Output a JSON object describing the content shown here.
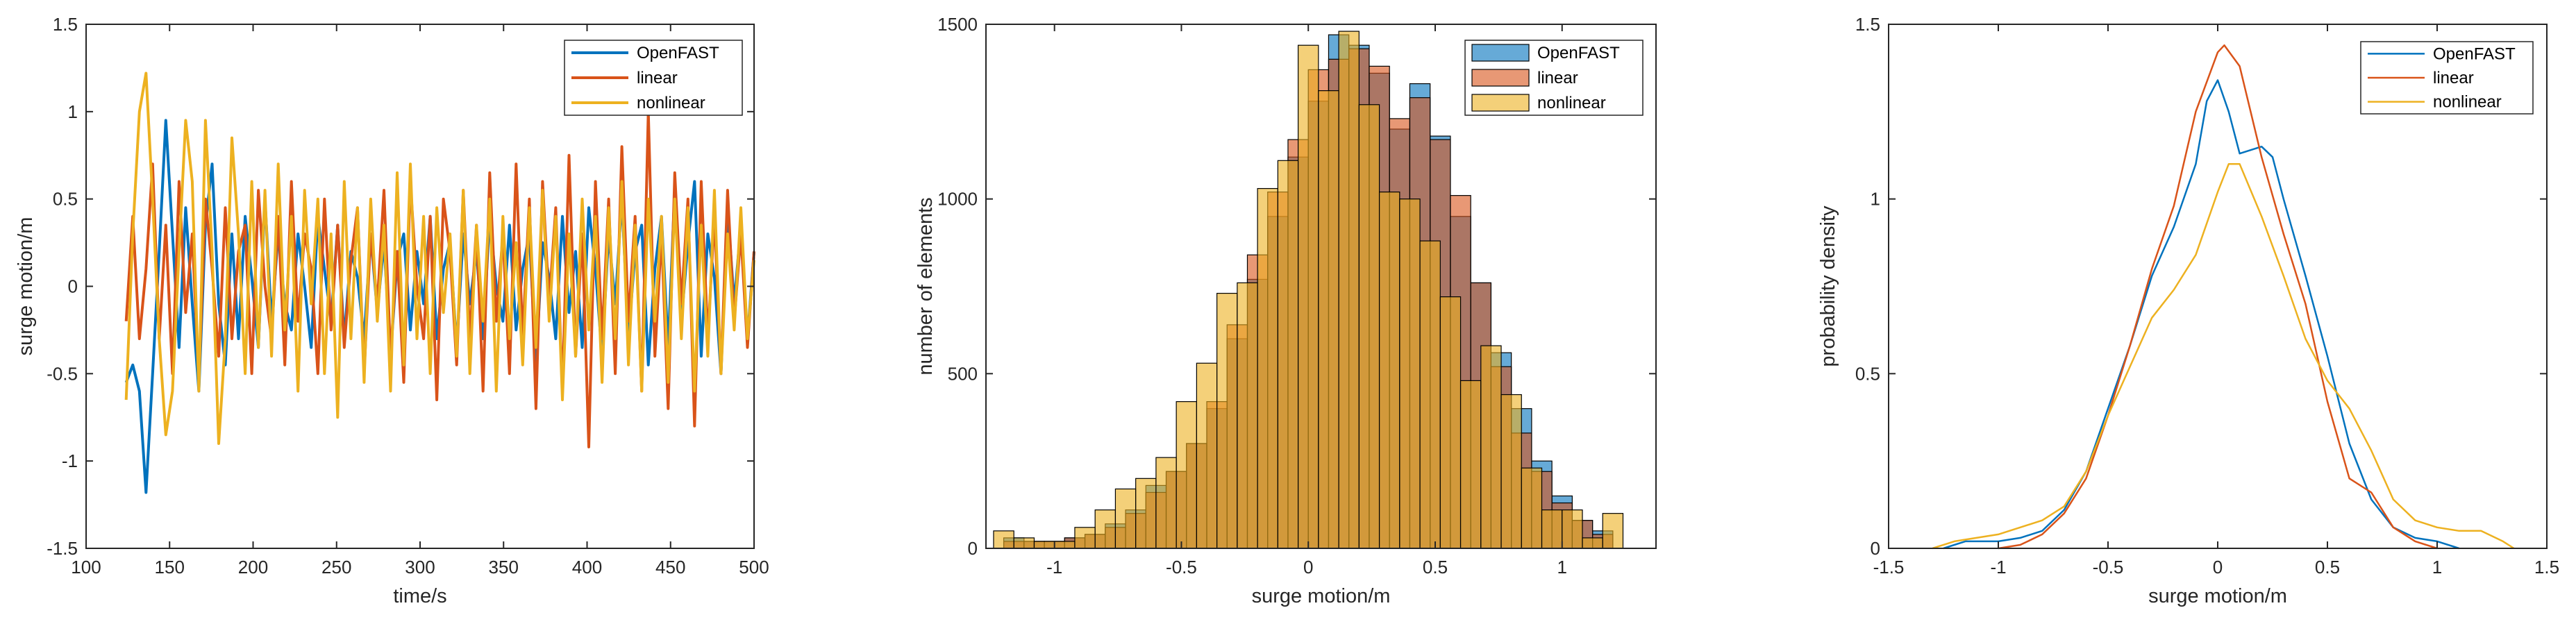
{
  "colors": {
    "openfast": "#0072BD",
    "linear": "#D95319",
    "nonlinear": "#EDB120"
  },
  "chart_data": [
    {
      "type": "line",
      "xlabel": "time/s",
      "ylabel": "surge motion/m",
      "xlim": [
        100,
        500
      ],
      "ylim": [
        -1.5,
        1.5
      ],
      "xticks": [
        "100",
        "150",
        "200",
        "250",
        "300",
        "350",
        "400",
        "450",
        "500"
      ],
      "yticks": [
        "-1.5",
        "-1",
        "-0.5",
        "0",
        "0.5",
        "1",
        "1.5"
      ],
      "legend": {
        "position": "top-right",
        "entries": [
          "OpenFAST",
          "linear",
          "nonlinear"
        ]
      },
      "series": [
        {
          "name": "OpenFAST",
          "color": "#0072BD",
          "t0": 124,
          "t1": 500,
          "values": [
            -0.55,
            -0.45,
            -0.6,
            -1.18,
            -0.5,
            0.2,
            0.95,
            0.3,
            -0.35,
            0.45,
            -0.1,
            -0.6,
            0.35,
            0.7,
            -0.1,
            -0.45,
            0.3,
            -0.3,
            0.4,
            0.05,
            -0.35,
            0.5,
            -0.2,
            0.3,
            -0.1,
            -0.25,
            0.3,
            0.0,
            -0.35,
            0.4,
            0.1,
            -0.2,
            0.35,
            -0.3,
            0.2,
            0.05,
            -0.3,
            0.3,
            -0.15,
            0.25,
            -0.4,
            0.15,
            0.3,
            -0.25,
            0.2,
            -0.1,
            0.4,
            -0.3,
            0.1,
            0.25,
            -0.35,
            0.3,
            -0.1,
            0.2,
            -0.3,
            0.4,
            0.0,
            -0.2,
            0.35,
            -0.25,
            0.1,
            0.3,
            -0.45,
            0.25,
            0.05,
            -0.3,
            0.4,
            -0.15,
            0.2,
            -0.35,
            0.45,
            0.1,
            -0.4,
            0.3,
            -0.1,
            0.5,
            -0.3,
            0.2,
            0.35,
            -0.45,
            0.1,
            0.4,
            -0.35,
            0.55,
            -0.2,
            0.25,
            0.6,
            -0.4,
            0.3,
            0.05,
            -0.5,
            0.45,
            -0.1,
            0.35,
            -0.3,
            0.2
          ]
        },
        {
          "name": "linear",
          "color": "#D95319",
          "t0": 124,
          "t1": 500,
          "values": [
            -0.2,
            0.4,
            -0.3,
            0.1,
            0.7,
            -0.3,
            0.35,
            -0.5,
            0.6,
            -0.15,
            0.3,
            -0.55,
            0.5,
            0.1,
            -0.4,
            0.45,
            -0.3,
            0.2,
            0.35,
            -0.5,
            0.55,
            0.0,
            -0.3,
            0.4,
            -0.45,
            0.6,
            -0.2,
            0.3,
            0.1,
            -0.5,
            0.5,
            -0.25,
            0.35,
            -0.35,
            0.15,
            0.45,
            -0.5,
            0.3,
            -0.1,
            0.55,
            -0.4,
            0.2,
            -0.55,
            0.6,
            0.0,
            -0.3,
            0.4,
            -0.65,
            0.5,
            0.2,
            -0.45,
            0.55,
            -0.3,
            0.35,
            -0.6,
            0.65,
            -0.2,
            0.3,
            -0.5,
            0.7,
            -0.3,
            0.5,
            -0.7,
            0.6,
            -0.1,
            0.45,
            -0.6,
            0.75,
            -0.4,
            0.3,
            -0.92,
            0.6,
            -0.3,
            0.5,
            -0.5,
            0.8,
            -0.2,
            0.4,
            -0.6,
            1.0,
            -0.4,
            0.3,
            -0.7,
            0.65,
            -0.1,
            0.5,
            -0.8,
            0.6,
            -0.3,
            0.4,
            -0.5,
            0.55,
            -0.2,
            0.3,
            -0.35,
            0.2
          ]
        },
        {
          "name": "nonlinear",
          "color": "#EDB120",
          "t0": 124,
          "t1": 500,
          "values": [
            -0.65,
            0.3,
            1.0,
            1.22,
            0.5,
            -0.3,
            -0.85,
            -0.6,
            0.2,
            0.95,
            0.6,
            -0.6,
            0.95,
            0.2,
            -0.9,
            -0.3,
            0.85,
            0.3,
            -0.5,
            0.6,
            -0.35,
            0.55,
            -0.4,
            0.7,
            -0.25,
            0.4,
            -0.6,
            0.55,
            -0.1,
            0.5,
            -0.5,
            0.3,
            -0.75,
            0.6,
            -0.3,
            0.45,
            -0.55,
            0.5,
            -0.2,
            0.35,
            -0.6,
            0.65,
            -0.45,
            0.7,
            -0.3,
            0.4,
            -0.5,
            0.45,
            -0.15,
            0.3,
            -0.4,
            0.55,
            -0.5,
            0.35,
            -0.2,
            0.5,
            -0.6,
            0.4,
            -0.3,
            0.25,
            -0.45,
            0.45,
            -0.35,
            0.55,
            -0.2,
            0.4,
            -0.65,
            0.3,
            -0.4,
            0.5,
            -0.25,
            0.4,
            -0.55,
            0.45,
            -0.3,
            0.6,
            -0.45,
            0.35,
            -0.6,
            0.5,
            -0.2,
            0.4,
            -0.55,
            0.5,
            -0.3,
            0.45,
            -0.6,
            0.35,
            -0.4,
            0.55,
            -0.5,
            0.3,
            -0.25,
            0.45,
            -0.3,
            0.15
          ]
        }
      ]
    },
    {
      "type": "bar",
      "subtype": "histogram",
      "xlabel": "surge motion/m",
      "ylabel": "number of elements",
      "xlim": [
        -1.27,
        1.37
      ],
      "ylim": [
        0,
        1500
      ],
      "xticks": [
        "-1",
        "-0.5",
        "0",
        "0.5",
        "1"
      ],
      "yticks": [
        "0",
        "500",
        "1000",
        "1500"
      ],
      "legend": {
        "position": "top-right",
        "entries": [
          "OpenFAST",
          "linear",
          "nonlinear"
        ]
      },
      "series": [
        {
          "name": "OpenFAST",
          "color": "#0072BD",
          "bin_start": -1.2,
          "bin_width": 0.08,
          "values": [
            30,
            20,
            20,
            30,
            40,
            70,
            110,
            180,
            220,
            300,
            400,
            600,
            770,
            950,
            1120,
            1280,
            1470,
            1440,
            1360,
            1200,
            1330,
            1180,
            950,
            760,
            560,
            400,
            250,
            150,
            80,
            50
          ]
        },
        {
          "name": "linear",
          "color": "#D95319",
          "bin_start": -1.2,
          "bin_width": 0.08,
          "values": [
            20,
            20,
            20,
            30,
            40,
            60,
            100,
            160,
            220,
            300,
            420,
            640,
            840,
            1020,
            1170,
            1370,
            1400,
            1430,
            1380,
            1230,
            1290,
            1170,
            1010,
            760,
            520,
            330,
            220,
            130,
            80,
            40
          ]
        },
        {
          "name": "nonlinear",
          "color": "#EDB120",
          "bin_start": -1.24,
          "bin_width": 0.08,
          "values": [
            50,
            30,
            20,
            20,
            60,
            110,
            170,
            200,
            260,
            420,
            530,
            730,
            760,
            1030,
            1110,
            1440,
            1310,
            1480,
            1270,
            1020,
            1000,
            880,
            720,
            480,
            580,
            440,
            230,
            110,
            110,
            30,
            100
          ]
        }
      ]
    },
    {
      "type": "line",
      "xlabel": "surge motion/m",
      "ylabel": "probability density",
      "xlim": [
        -1.5,
        1.5
      ],
      "ylim": [
        0,
        1.5
      ],
      "xticks": [
        "-1.5",
        "-1",
        "-0.5",
        "0",
        "0.5",
        "1",
        "1.5"
      ],
      "yticks": [
        "0",
        "0.5",
        "1",
        "1.5"
      ],
      "legend": {
        "position": "top-right",
        "entries": [
          "OpenFAST",
          "linear",
          "nonlinear"
        ]
      },
      "series": [
        {
          "name": "OpenFAST",
          "color": "#0072BD",
          "points": [
            [
              -1.25,
              0
            ],
            [
              -1.15,
              0.02
            ],
            [
              -1.0,
              0.02
            ],
            [
              -0.9,
              0.03
            ],
            [
              -0.8,
              0.05
            ],
            [
              -0.7,
              0.11
            ],
            [
              -0.6,
              0.22
            ],
            [
              -0.5,
              0.4
            ],
            [
              -0.4,
              0.58
            ],
            [
              -0.3,
              0.78
            ],
            [
              -0.2,
              0.92
            ],
            [
              -0.1,
              1.1
            ],
            [
              -0.05,
              1.28
            ],
            [
              0.0,
              1.34
            ],
            [
              0.05,
              1.25
            ],
            [
              0.1,
              1.13
            ],
            [
              0.2,
              1.15
            ],
            [
              0.25,
              1.12
            ],
            [
              0.3,
              1.0
            ],
            [
              0.4,
              0.78
            ],
            [
              0.5,
              0.55
            ],
            [
              0.6,
              0.3
            ],
            [
              0.7,
              0.14
            ],
            [
              0.8,
              0.06
            ],
            [
              0.9,
              0.03
            ],
            [
              1.0,
              0.02
            ],
            [
              1.1,
              0
            ]
          ]
        },
        {
          "name": "linear",
          "color": "#D95319",
          "points": [
            [
              -1.0,
              0
            ],
            [
              -0.9,
              0.01
            ],
            [
              -0.8,
              0.04
            ],
            [
              -0.7,
              0.1
            ],
            [
              -0.6,
              0.2
            ],
            [
              -0.5,
              0.38
            ],
            [
              -0.4,
              0.58
            ],
            [
              -0.3,
              0.8
            ],
            [
              -0.2,
              0.98
            ],
            [
              -0.1,
              1.25
            ],
            [
              0.0,
              1.42
            ],
            [
              0.03,
              1.44
            ],
            [
              0.1,
              1.38
            ],
            [
              0.2,
              1.12
            ],
            [
              0.3,
              0.9
            ],
            [
              0.4,
              0.7
            ],
            [
              0.5,
              0.42
            ],
            [
              0.6,
              0.2
            ],
            [
              0.7,
              0.16
            ],
            [
              0.8,
              0.06
            ],
            [
              0.9,
              0.02
            ],
            [
              1.0,
              0
            ]
          ]
        },
        {
          "name": "nonlinear",
          "color": "#EDB120",
          "points": [
            [
              -1.3,
              0
            ],
            [
              -1.2,
              0.02
            ],
            [
              -1.1,
              0.03
            ],
            [
              -1.0,
              0.04
            ],
            [
              -0.9,
              0.06
            ],
            [
              -0.8,
              0.08
            ],
            [
              -0.7,
              0.12
            ],
            [
              -0.6,
              0.22
            ],
            [
              -0.5,
              0.38
            ],
            [
              -0.4,
              0.52
            ],
            [
              -0.3,
              0.66
            ],
            [
              -0.2,
              0.74
            ],
            [
              -0.1,
              0.84
            ],
            [
              0.0,
              1.02
            ],
            [
              0.05,
              1.1
            ],
            [
              0.1,
              1.1
            ],
            [
              0.2,
              0.95
            ],
            [
              0.3,
              0.78
            ],
            [
              0.4,
              0.6
            ],
            [
              0.5,
              0.48
            ],
            [
              0.6,
              0.4
            ],
            [
              0.7,
              0.28
            ],
            [
              0.8,
              0.14
            ],
            [
              0.9,
              0.08
            ],
            [
              1.0,
              0.06
            ],
            [
              1.1,
              0.05
            ],
            [
              1.2,
              0.05
            ],
            [
              1.3,
              0.02
            ],
            [
              1.35,
              0
            ]
          ]
        }
      ]
    }
  ]
}
